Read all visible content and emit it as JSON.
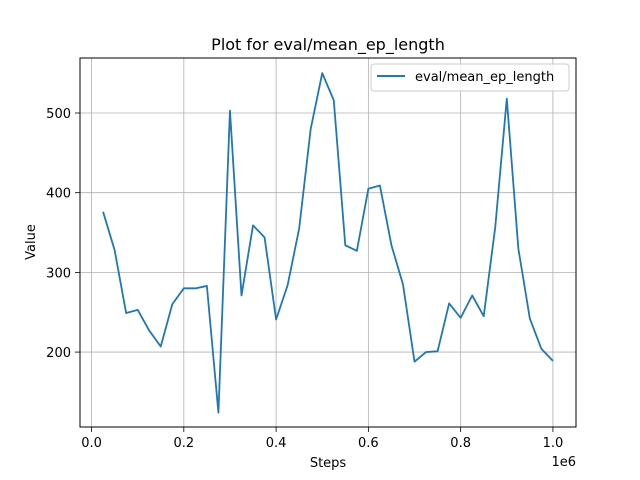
{
  "chart_data": {
    "type": "line",
    "title": "Plot for eval/mean_ep_length",
    "xlabel": "Steps",
    "ylabel": "Value",
    "x_scale_label": "1e6",
    "xlim": [
      -0.025,
      1.05
    ],
    "ylim": [
      106,
      569
    ],
    "x_ticks": [
      0.0,
      0.2,
      0.4,
      0.6,
      0.8,
      1.0
    ],
    "x_tick_labels": [
      "0.0",
      "0.2",
      "0.4",
      "0.6",
      "0.8",
      "1.0"
    ],
    "y_ticks": [
      200,
      300,
      400,
      500
    ],
    "y_tick_labels": [
      "200",
      "300",
      "400",
      "500"
    ],
    "grid": true,
    "legend_position": "top-right",
    "series": [
      {
        "name": "eval/mean_ep_length",
        "color": "#1f77b4",
        "x": [
          0.025,
          0.05,
          0.075,
          0.1,
          0.125,
          0.15,
          0.175,
          0.2,
          0.225,
          0.25,
          0.275,
          0.3,
          0.325,
          0.35,
          0.375,
          0.4,
          0.425,
          0.45,
          0.475,
          0.5,
          0.525,
          0.55,
          0.575,
          0.6,
          0.625,
          0.65,
          0.675,
          0.7,
          0.725,
          0.75,
          0.775,
          0.8,
          0.825,
          0.85,
          0.875,
          0.9,
          0.925,
          0.95,
          0.975,
          1.0
        ],
        "y": [
          376,
          328,
          249,
          253,
          227,
          207,
          260,
          280,
          280,
          283,
          124,
          503,
          271,
          359,
          344,
          241,
          284,
          355,
          480,
          550,
          516,
          334,
          327,
          405,
          409,
          334,
          285,
          188,
          200,
          201,
          261,
          243,
          271,
          245,
          357,
          518,
          330,
          242,
          204,
          189
        ]
      }
    ]
  }
}
